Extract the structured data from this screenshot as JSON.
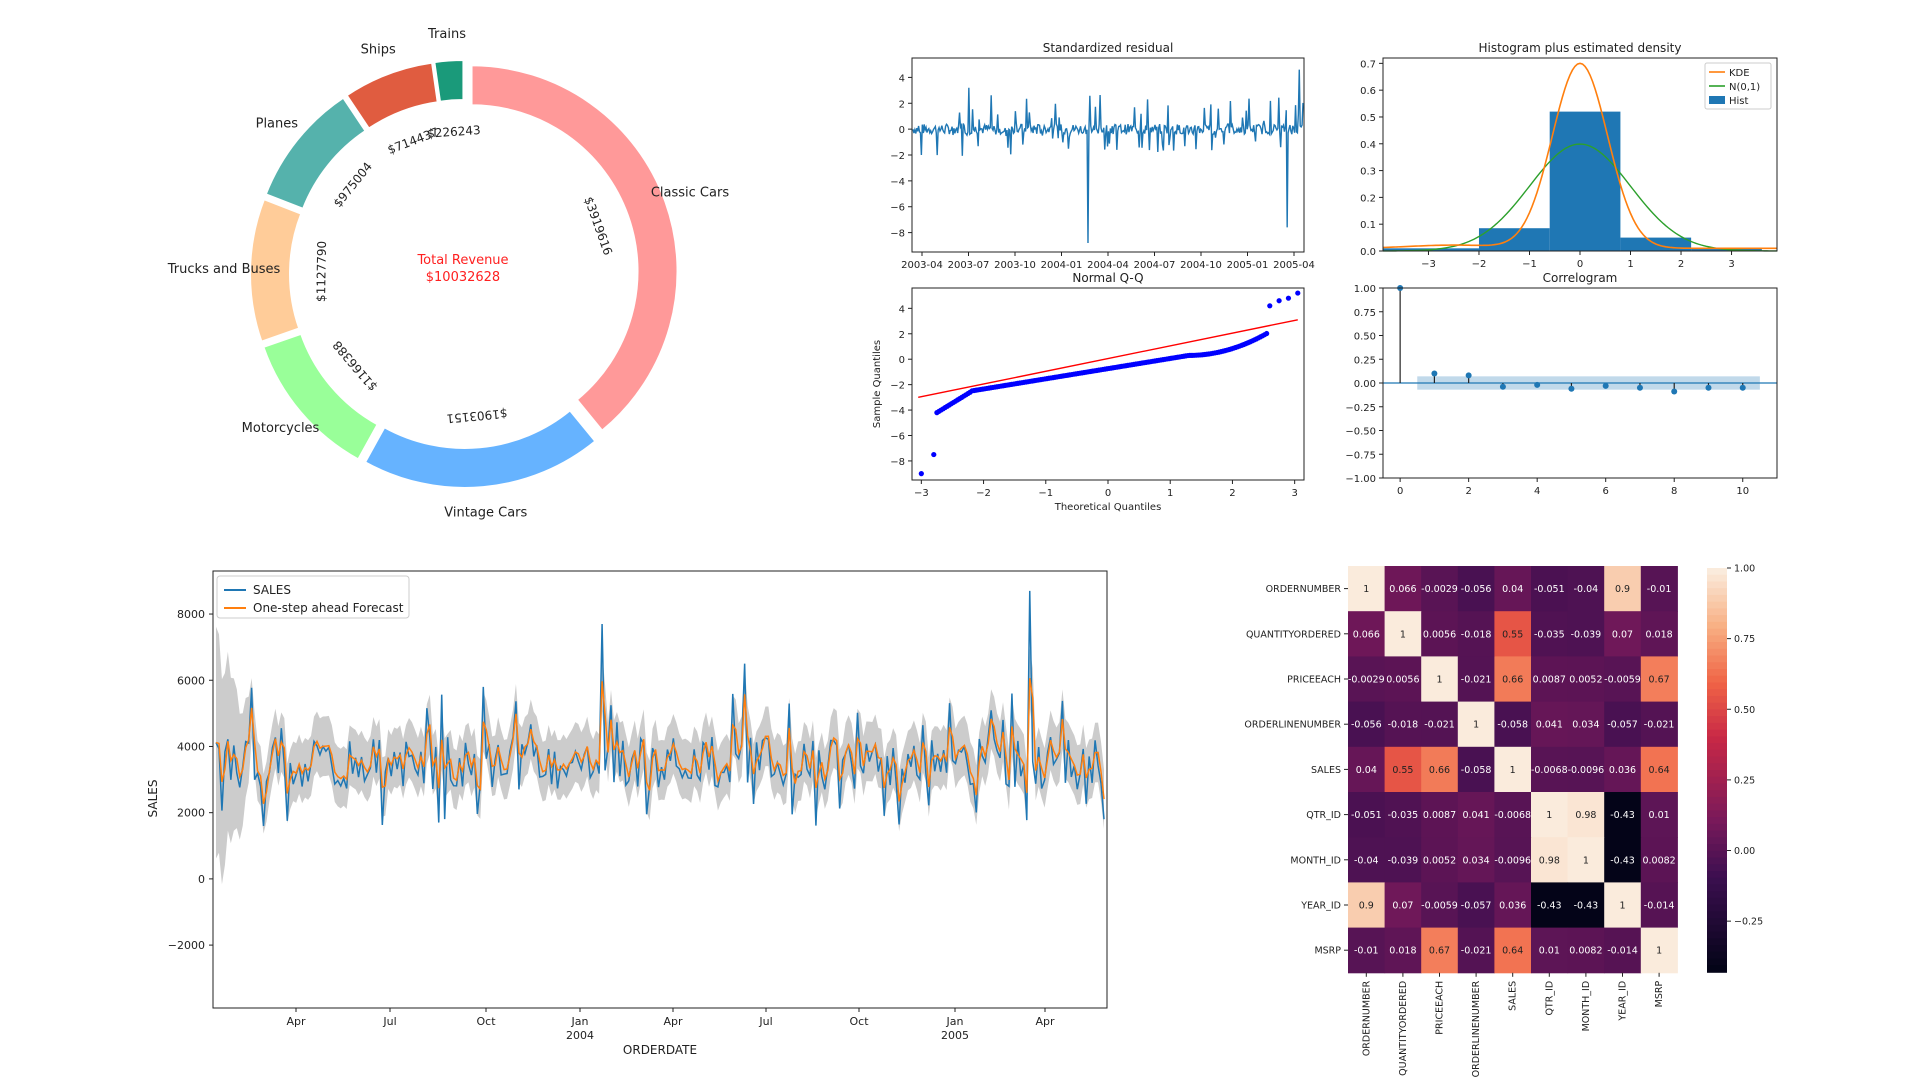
{
  "chart_data": [
    {
      "id": "donut",
      "type": "pie",
      "variant": "donut",
      "center_label_line1": "Total Revenue",
      "center_label_line2": "$10032628",
      "center_label_color": "#ff2020",
      "slices": [
        {
          "label": "Trains",
          "value": 226243,
          "value_label": "$226243",
          "color": "#1a9a7a"
        },
        {
          "label": "Ships",
          "value": 714437,
          "value_label": "$714437",
          "color": "#e05c40"
        },
        {
          "label": "Planes",
          "value": 975004,
          "value_label": "$975004",
          "color": "#55b2ac"
        },
        {
          "label": "Trucks and Buses",
          "value": 1127790,
          "value_label": "$1127790",
          "color": "#ffcc99"
        },
        {
          "label": "Motorcycles",
          "value": 1166388,
          "value_label": "$1166388",
          "color": "#99ff99"
        },
        {
          "label": "Vintage Cars",
          "value": 1903151,
          "value_label": "$1903151",
          "color": "#66b3ff"
        },
        {
          "label": "Classic Cars",
          "value": 3919616,
          "value_label": "$3919616",
          "color": "#ff9999"
        }
      ]
    },
    {
      "id": "resid",
      "type": "line",
      "title": "Standardized residual",
      "ylim": [
        -9.5,
        5.5
      ],
      "yticks": [
        4,
        2,
        0,
        -2,
        -4,
        -6,
        -8
      ],
      "xtick_labels": [
        "2003-04",
        "2003-07",
        "2003-10",
        "2004-01",
        "2004-04",
        "2004-07",
        "2004-10",
        "2005-01",
        "2005-04"
      ],
      "color": "#1f77b4"
    },
    {
      "id": "hist",
      "type": "bar",
      "title": "Histogram plus estimated density",
      "xlim": [
        -3.9,
        3.9
      ],
      "ylim": [
        0,
        0.72
      ],
      "xticks": [
        -3,
        -2,
        -1,
        0,
        1,
        2,
        3
      ],
      "yticks": [
        0.0,
        0.1,
        0.2,
        0.3,
        0.4,
        0.5,
        0.6,
        0.7
      ],
      "bins": [
        {
          "x0": -3.9,
          "x1": -2.0,
          "value": 0.01
        },
        {
          "x0": -2.0,
          "x1": -0.6,
          "value": 0.085
        },
        {
          "x0": -0.6,
          "x1": 0.8,
          "value": 0.52
        },
        {
          "x0": 0.8,
          "x1": 2.2,
          "value": 0.05
        },
        {
          "x0": 2.2,
          "x1": 3.6,
          "value": 0.01
        }
      ],
      "legend": [
        {
          "label": "KDE",
          "color": "#ff7f0e",
          "kind": "line"
        },
        {
          "label": "N(0,1)",
          "color": "#2ca02c",
          "kind": "line"
        },
        {
          "label": "Hist",
          "color": "#1f77b4",
          "kind": "patch"
        }
      ],
      "legend_position": "top-right"
    },
    {
      "id": "qq",
      "type": "scatter",
      "title": "Normal Q-Q",
      "xlabel": "Theoretical Quantiles",
      "ylabel": "Sample Quantiles",
      "xlim": [
        -3.15,
        3.15
      ],
      "ylim": [
        -9.5,
        5.6
      ],
      "xticks": [
        -3,
        -2,
        -1,
        0,
        1,
        2,
        3
      ],
      "yticks": [
        4,
        2,
        0,
        -2,
        -4,
        -6,
        -8
      ],
      "reference_line": [
        [
          -3.05,
          -3.0
        ],
        [
          3.05,
          3.1
        ]
      ],
      "marker_color": "#0000ff",
      "line_color": "#ff0000"
    },
    {
      "id": "acf",
      "type": "bar",
      "title": "Correlogram",
      "xlim": [
        -0.5,
        11.0
      ],
      "ylim": [
        -1.0,
        1.0
      ],
      "xticks": [
        0,
        2,
        4,
        6,
        8,
        10
      ],
      "yticks": [
        1.0,
        0.75,
        0.5,
        0.25,
        0.0,
        -0.25,
        -0.5,
        -0.75,
        -1.0
      ],
      "lags": [
        0,
        1,
        2,
        3,
        4,
        5,
        6,
        7,
        8,
        9,
        10
      ],
      "values": [
        1.0,
        0.1,
        0.08,
        -0.04,
        -0.02,
        -0.06,
        -0.03,
        -0.05,
        -0.09,
        -0.05,
        -0.05
      ],
      "conf_band": 0.07,
      "color": "#1f77b4"
    },
    {
      "id": "forecast",
      "type": "line",
      "xlabel": "ORDERDATE",
      "ylabel": "SALES",
      "ylim": [
        -3900,
        9300
      ],
      "yticks": [
        8000,
        6000,
        4000,
        2000,
        0,
        -2000
      ],
      "ytick_labels": [
        "8000",
        "6000",
        "4000",
        "2000",
        "0",
        "−2000"
      ],
      "xtick_labels": [
        "Apr",
        "Jul",
        "Oct",
        "Jan\n2004",
        "Apr",
        "Jul",
        "Oct",
        "Jan\n2005",
        "Apr"
      ],
      "series": [
        {
          "name": "SALES",
          "color": "#1f77b4"
        },
        {
          "name": "One-step ahead Forecast",
          "color": "#ff7f0e"
        }
      ],
      "confidence_band_color": "#bbbbbb",
      "legend_position": "top-left"
    },
    {
      "id": "heatmap",
      "type": "heatmap",
      "labels": [
        "ORDERNUMBER",
        "QUANTITYORDERED",
        "PRICEEACH",
        "ORDERLINENUMBER",
        "SALES",
        "QTR_ID",
        "MONTH_ID",
        "YEAR_ID",
        "MSRP"
      ],
      "matrix": [
        [
          "1",
          "0.066",
          "-0.0029",
          "-0.056",
          "0.04",
          "-0.051",
          "-0.04",
          "0.9",
          "-0.01"
        ],
        [
          "0.066",
          "1",
          "0.0056",
          "-0.018",
          "0.55",
          "-0.035",
          "-0.039",
          "0.07",
          "0.018"
        ],
        [
          "-0.0029",
          "0.0056",
          "1",
          "-0.021",
          "0.66",
          "0.0087",
          "0.0052",
          "-0.0059",
          "0.67"
        ],
        [
          "-0.056",
          "-0.018",
          "-0.021",
          "1",
          "-0.058",
          "0.041",
          "0.034",
          "-0.057",
          "-0.021"
        ],
        [
          "0.04",
          "0.55",
          "0.66",
          "-0.058",
          "1",
          "-0.0068",
          "-0.0096",
          "0.036",
          "0.64"
        ],
        [
          "-0.051",
          "-0.035",
          "0.0087",
          "0.041",
          "-0.0068",
          "1",
          "0.98",
          "-0.43",
          "0.01"
        ],
        [
          "-0.04",
          "-0.039",
          "0.0052",
          "0.034",
          "-0.0096",
          "0.98",
          "1",
          "-0.43",
          "0.0082"
        ],
        [
          "0.9",
          "0.07",
          "-0.0059",
          "-0.057",
          "0.036",
          "-0.43",
          "-0.43",
          "1",
          "-0.014"
        ],
        [
          "-0.01",
          "0.018",
          "0.67",
          "-0.021",
          "0.64",
          "0.01",
          "0.0082",
          "-0.014",
          "1"
        ]
      ],
      "colorbar_range": [
        -0.43,
        1.0
      ],
      "colorbar_ticks": [
        1.0,
        0.75,
        0.5,
        0.25,
        0.0,
        -0.25
      ],
      "colorbar_tick_labels": [
        "1.00",
        "0.75",
        "0.50",
        "0.25",
        "0.00",
        "−0.25"
      ],
      "colormap": "rocket"
    }
  ]
}
